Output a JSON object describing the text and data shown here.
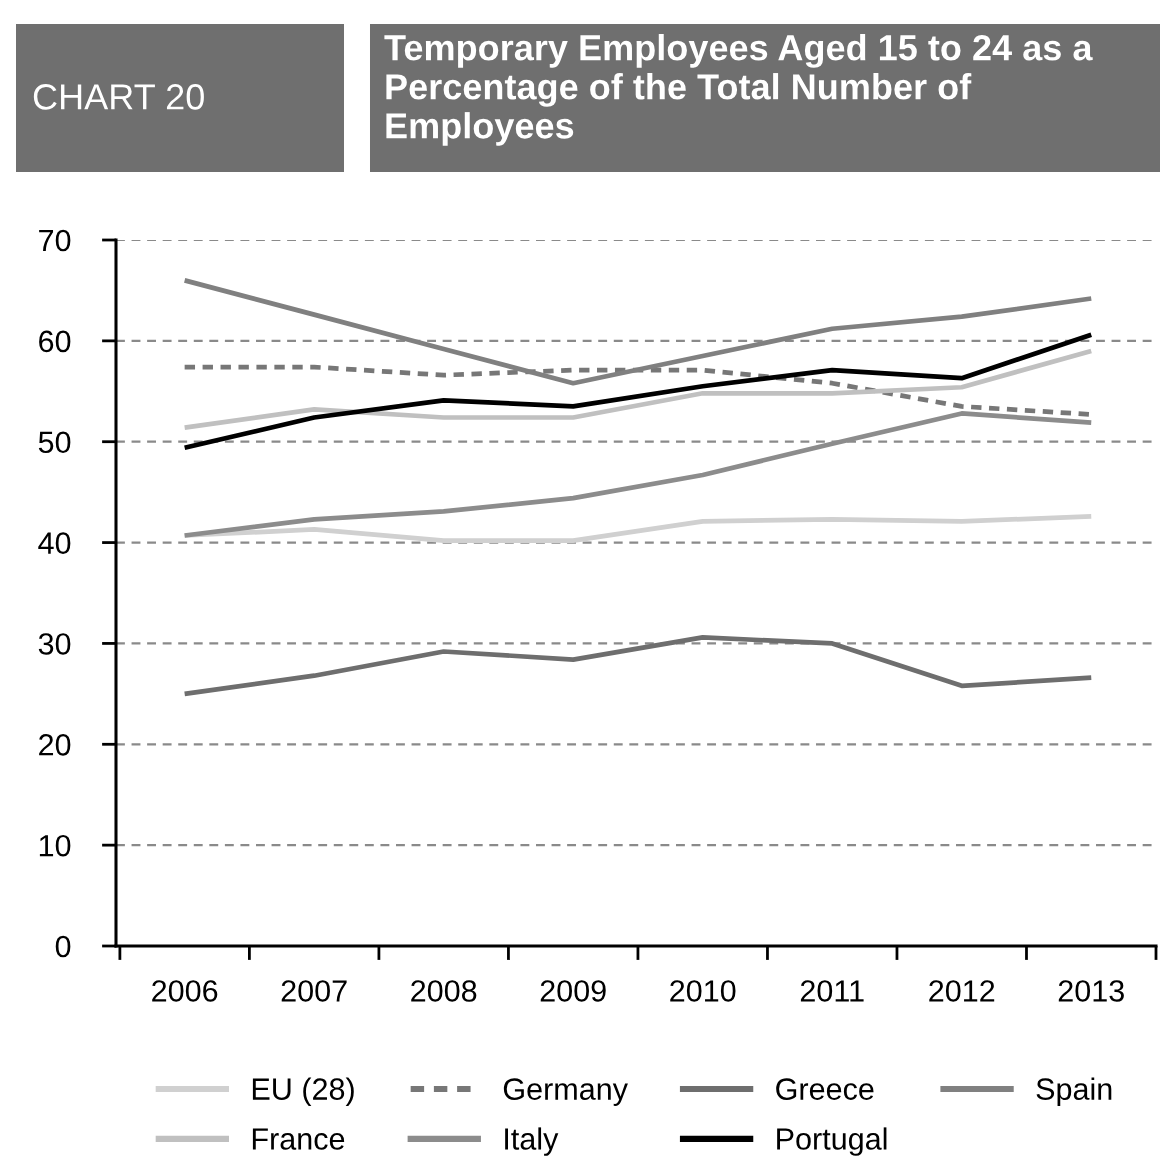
{
  "chart_data": {
    "type": "line",
    "title": "Temporary Employees Aged 15 to 24 as a Percentage of the Total Number of Employees",
    "annotations": [
      "CHART 20"
    ],
    "categories": [
      "2006",
      "2007",
      "2008",
      "2009",
      "2010",
      "2011",
      "2012",
      "2013"
    ],
    "series": [
      {
        "name": "EU (28)",
        "color": "#d0d0d0",
        "values": [
          40.7,
          41.3,
          40.2,
          40.2,
          42.1,
          42.3,
          42.1,
          42.6
        ]
      },
      {
        "name": "Germany",
        "color": "#777777",
        "line_style": "dashed",
        "values": [
          57.4,
          57.4,
          56.6,
          57.1,
          57.1,
          55.8,
          53.5,
          52.7
        ]
      },
      {
        "name": "Greece",
        "color": "#6e6e6e",
        "values": [
          25.0,
          26.8,
          29.2,
          28.4,
          30.6,
          30.0,
          25.8,
          26.6
        ]
      },
      {
        "name": "Spain",
        "color": "#808080",
        "values": [
          66.0,
          62.6,
          59.2,
          55.8,
          58.5,
          61.2,
          62.4,
          64.2
        ]
      },
      {
        "name": "France",
        "color": "#c0c0c0",
        "values": [
          51.4,
          53.2,
          52.4,
          52.4,
          54.8,
          54.8,
          55.4,
          59.0
        ]
      },
      {
        "name": "Italy",
        "color": "#8c8c8c",
        "values": [
          40.7,
          42.3,
          43.1,
          44.4,
          46.7,
          49.8,
          52.8,
          51.9
        ]
      },
      {
        "name": "Portugal",
        "color": "#000000",
        "values": [
          49.4,
          52.4,
          54.1,
          53.5,
          55.5,
          57.1,
          56.3,
          60.6
        ]
      }
    ],
    "ylim": [
      0,
      70
    ],
    "yticks": [
      0,
      10,
      20,
      30,
      40,
      50,
      60,
      70
    ],
    "grid": "y",
    "legend": "bottom",
    "line_style": "solid"
  }
}
